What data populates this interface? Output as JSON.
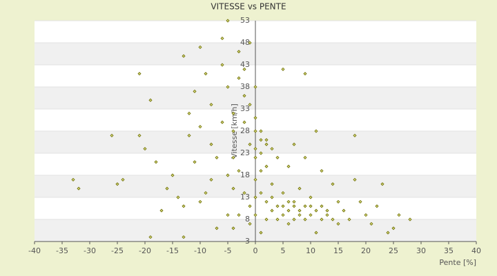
{
  "chart_data": {
    "type": "scatter",
    "title": "VITESSE vs PENTE",
    "x_label": "Pente [%]",
    "y_label": "Vitesse [km/h]",
    "series": [
      {
        "name": "Vitesse",
        "color": "#6b6b00",
        "x": [
          -33,
          -32,
          -26,
          -25,
          -24,
          -21,
          -21,
          -20,
          -19,
          -19,
          -18,
          -17,
          -16,
          -15,
          -13,
          -13,
          -13,
          -12,
          -11,
          -10,
          -10,
          -9,
          -8,
          -8,
          -7,
          -6,
          -6,
          -5,
          -5,
          -4,
          -4,
          -4,
          -3,
          -3,
          -3,
          -3,
          -2,
          -2,
          -2,
          -1,
          -1,
          -1,
          0,
          0,
          0,
          0,
          0,
          0,
          0,
          1,
          1,
          1,
          1,
          1,
          2,
          2,
          2,
          2,
          3,
          3,
          3,
          4,
          4,
          4,
          5,
          5,
          5,
          6,
          6,
          6,
          7,
          7,
          7,
          8,
          8,
          8,
          9,
          9,
          9,
          9,
          10,
          10,
          11,
          11,
          11,
          12,
          12,
          13,
          14,
          14,
          15,
          15,
          16,
          17,
          18,
          18,
          19,
          20,
          21,
          22,
          23,
          24,
          25,
          26,
          28,
          -6,
          -7,
          -8,
          -9,
          -5,
          -4,
          -2,
          -1,
          0,
          1,
          2,
          3,
          5,
          6,
          7,
          10,
          12,
          13,
          -1,
          -4,
          -5,
          -10,
          -11,
          -14,
          -12
        ],
        "y": [
          17,
          15,
          27,
          16,
          17,
          41,
          27,
          24,
          35,
          4,
          21,
          10,
          15,
          18,
          45,
          4,
          11,
          27,
          21,
          47,
          12,
          41,
          34,
          25,
          6,
          49,
          43,
          53,
          38,
          32,
          28,
          22,
          46,
          40,
          19,
          9,
          36,
          30,
          14,
          34,
          25,
          11,
          38,
          31,
          24,
          22,
          17,
          13,
          9,
          28,
          23,
          19,
          14,
          5,
          26,
          20,
          12,
          8,
          24,
          16,
          10,
          22,
          11,
          8,
          42,
          14,
          9,
          20,
          12,
          10,
          25,
          11,
          8,
          15,
          10,
          9,
          41,
          22,
          11,
          8,
          13,
          9,
          28,
          10,
          5,
          19,
          8,
          9,
          16,
          8,
          12,
          7,
          10,
          8,
          27,
          17,
          12,
          9,
          7,
          11,
          16,
          5,
          6,
          9,
          8,
          30,
          22,
          17,
          14,
          18,
          15,
          42,
          48,
          28,
          26,
          25,
          13,
          11,
          7,
          12,
          11,
          11,
          10,
          7,
          6,
          9,
          29,
          37,
          13,
          32
        ]
      }
    ],
    "xlim": [
      -40,
      40
    ],
    "ylim": [
      3,
      53
    ],
    "xticks": [
      -40,
      -35,
      -30,
      -25,
      -20,
      -15,
      -10,
      -5,
      0,
      5,
      10,
      15,
      20,
      25,
      30,
      35,
      40
    ],
    "yticks": [
      3,
      8,
      13,
      18,
      23,
      28,
      33,
      38,
      43,
      48,
      53
    ]
  }
}
